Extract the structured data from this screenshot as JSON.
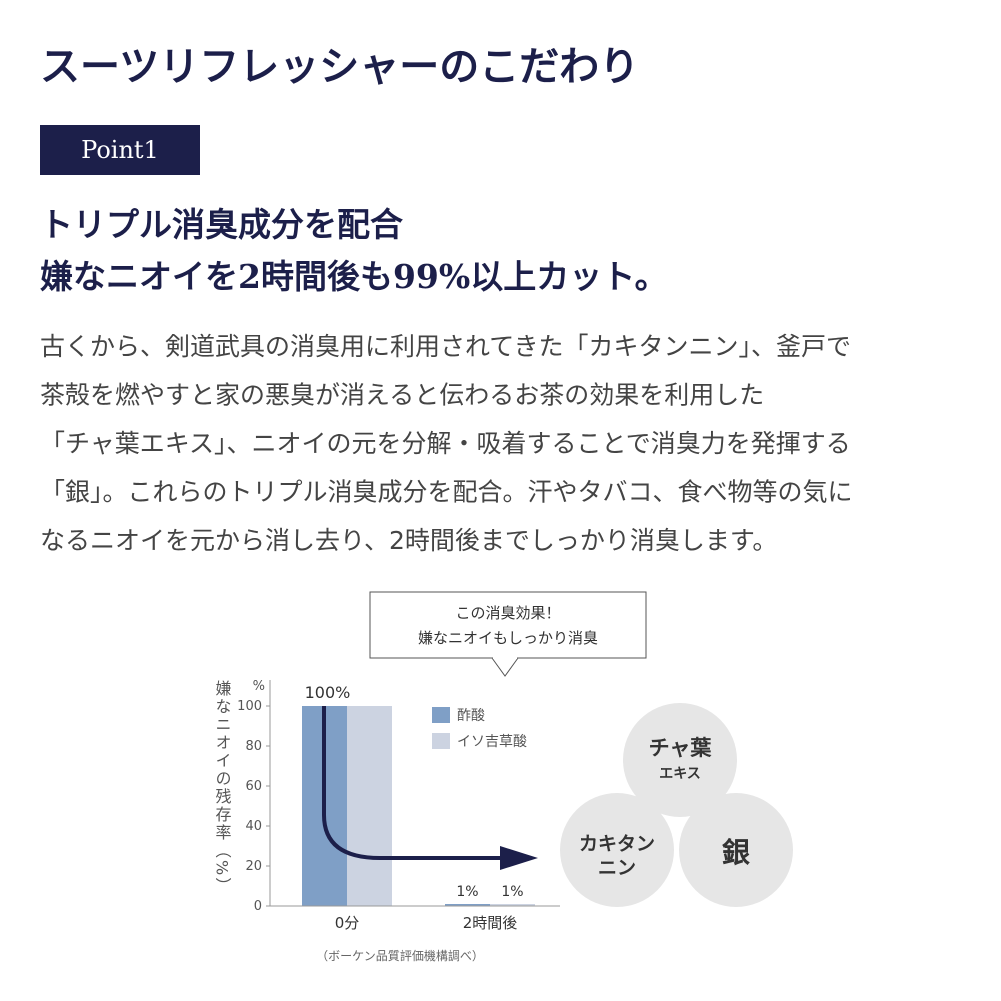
{
  "header": {
    "title": "スーツリフレッシャーのこだわり",
    "badge": "Point1"
  },
  "headline": [
    "トリプル消臭成分を配合",
    "嫌なニオイを2時間後も99%以上カット。"
  ],
  "body": [
    "古くから、剣道武具の消臭用に利用されてきた「カキタンニン」、釜戸で",
    "茶殻を燃やすと家の悪臭が消えると伝わるお茶の効果を利用した",
    "「チャ葉エキス」、ニオイの元を分解・吸着することで消臭力を発揮する",
    "「銀」。これらのトリプル消臭成分を配合。汗やタバコ、食べ物等の気に",
    "なるニオイを元から消し去り、2時間後までしっかり消臭します。"
  ],
  "callout": [
    "この消臭効果！",
    "嫌なニオイもしっかり消臭"
  ],
  "ingredients": [
    [
      "チャ葉",
      "エキス"
    ],
    [
      "カキタン",
      "ニン"
    ],
    [
      "銀"
    ]
  ],
  "chart_data": {
    "type": "bar",
    "y_label": "嫌なニオイの残存率（%）",
    "y_unit": "%",
    "categories": [
      "0分",
      "2時間後"
    ],
    "series": [
      {
        "name": "酢酸",
        "color": "#7f9fc6",
        "values": [
          100,
          1
        ],
        "value_labels": [
          "100%",
          "1%"
        ]
      },
      {
        "name": "イソ吉草酸",
        "color": "#ccd3e1",
        "values": [
          100,
          1
        ],
        "value_labels": [
          null,
          "1%"
        ]
      }
    ],
    "ylim": [
      0,
      100
    ],
    "yticks": [
      0,
      20,
      40,
      60,
      80,
      100
    ],
    "note": "（ボーケン品質評価機構調べ）"
  }
}
